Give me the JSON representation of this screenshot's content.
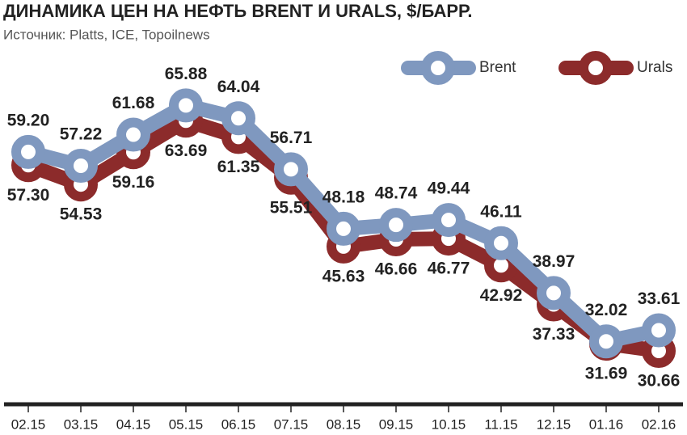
{
  "chart_data": {
    "type": "line",
    "title": "ДИНАМИКА ЦЕН НА НЕФТЬ BRENT И URALS, $/БАРР.",
    "subtitle": "Источник: Platts, ICE, Topoilnews",
    "categories": [
      "02.15",
      "03.15",
      "04.15",
      "05.15",
      "06.15",
      "07.15",
      "08.15",
      "09.15",
      "10.15",
      "11.15",
      "12.15",
      "01.16",
      "02.16"
    ],
    "series": [
      {
        "name": "Brent",
        "color": "#7f98bf",
        "values": [
          59.2,
          57.22,
          61.68,
          65.88,
          64.04,
          56.71,
          48.18,
          48.74,
          49.44,
          46.11,
          38.97,
          32.02,
          33.61
        ],
        "value_labels": [
          "59.20",
          "57.22",
          "61.68",
          "65.88",
          "64.04",
          "56.71",
          "48.18",
          "48.74",
          "49.44",
          "46.11",
          "38.97",
          "32.02",
          "33.61"
        ]
      },
      {
        "name": "Urals",
        "color": "#8c2b2b",
        "values": [
          57.3,
          54.53,
          59.16,
          63.69,
          61.35,
          55.51,
          45.63,
          46.66,
          46.77,
          42.92,
          37.33,
          31.69,
          30.66
        ],
        "value_labels": [
          "57.30",
          "54.53",
          "59.16",
          "63.69",
          "61.35",
          "55.51",
          "45.63",
          "46.66",
          "46.77",
          "42.92",
          "37.33",
          "31.69",
          "30.66"
        ]
      }
    ],
    "ylim": [
      23,
      81
    ],
    "legend": "top-right"
  }
}
